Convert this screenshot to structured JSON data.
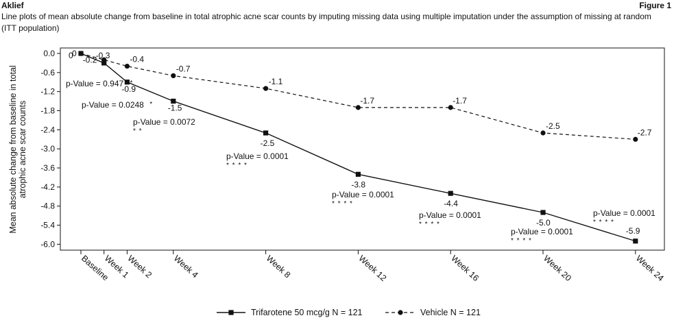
{
  "header": {
    "left": "Aklief",
    "right": "Figure 1"
  },
  "caption": "Line plots of mean absolute change from baseline in total atrophic acne scar counts by imputing missing data using multiple imputation under the assumption of missing at random (ITT population)",
  "chart_data": {
    "type": "line",
    "ylabel": "Mean absolute change from baseline in total atrophic acne scar counts",
    "ylim": [
      -6.0,
      0.0
    ],
    "yticks": [
      "0.0",
      "-0.6",
      "-1.2",
      "-1.8",
      "-2.4",
      "-3.0",
      "-3.6",
      "-4.2",
      "-4.8",
      "-5.4",
      "-6.0"
    ],
    "categories": [
      "Baseline",
      "Week 1",
      "Week 2",
      "Week 4",
      "Week 8",
      "Week 12",
      "Week 16",
      "Week 20",
      "Week 24"
    ],
    "x_weeks": [
      0,
      1,
      2,
      4,
      8,
      12,
      16,
      20,
      24
    ],
    "series": [
      {
        "name": "Trifarotene 50 mcg/g N = 121",
        "line_style": "solid",
        "marker": "square",
        "values": [
          0,
          -0.3,
          -0.9,
          -1.5,
          -2.5,
          -3.8,
          -4.4,
          -5.0,
          -5.9
        ],
        "labels": [
          "0",
          "-0.3",
          "-0.9",
          "-1.5",
          "-2.5",
          "-3.8",
          "-4.4",
          "-5.0",
          "-5.9"
        ]
      },
      {
        "name": "Vehicle N = 121",
        "line_style": "dashed",
        "marker": "circle",
        "values": [
          0,
          -0.2,
          -0.4,
          -0.7,
          -1.1,
          -1.7,
          -1.7,
          -2.5,
          -2.7
        ],
        "labels": [
          "0",
          "-0.2",
          "-0.4",
          "-0.7",
          "-1.1",
          "-1.7",
          "-1.7",
          "-2.5",
          "-2.7"
        ]
      }
    ],
    "annotations": [
      {
        "text": "p-Value = 0.947",
        "stars": "*"
      },
      {
        "text": "p-Value = 0.0248",
        "stars": "*"
      },
      {
        "text": "p-Value = 0.0072",
        "stars": "* *"
      },
      {
        "text": "p-Value = 0.0001",
        "stars": "* * * *"
      },
      {
        "text": "p-Value = 0.0001",
        "stars": "* * * *"
      },
      {
        "text": "p-Value = 0.0001",
        "stars": "* * * *"
      },
      {
        "text": "p-Value = 0.0001",
        "stars": "* * * *"
      },
      {
        "text": "p-Value = 0.0001",
        "stars": "* * * *"
      }
    ],
    "grid": false,
    "legend_position": "bottom-center"
  }
}
